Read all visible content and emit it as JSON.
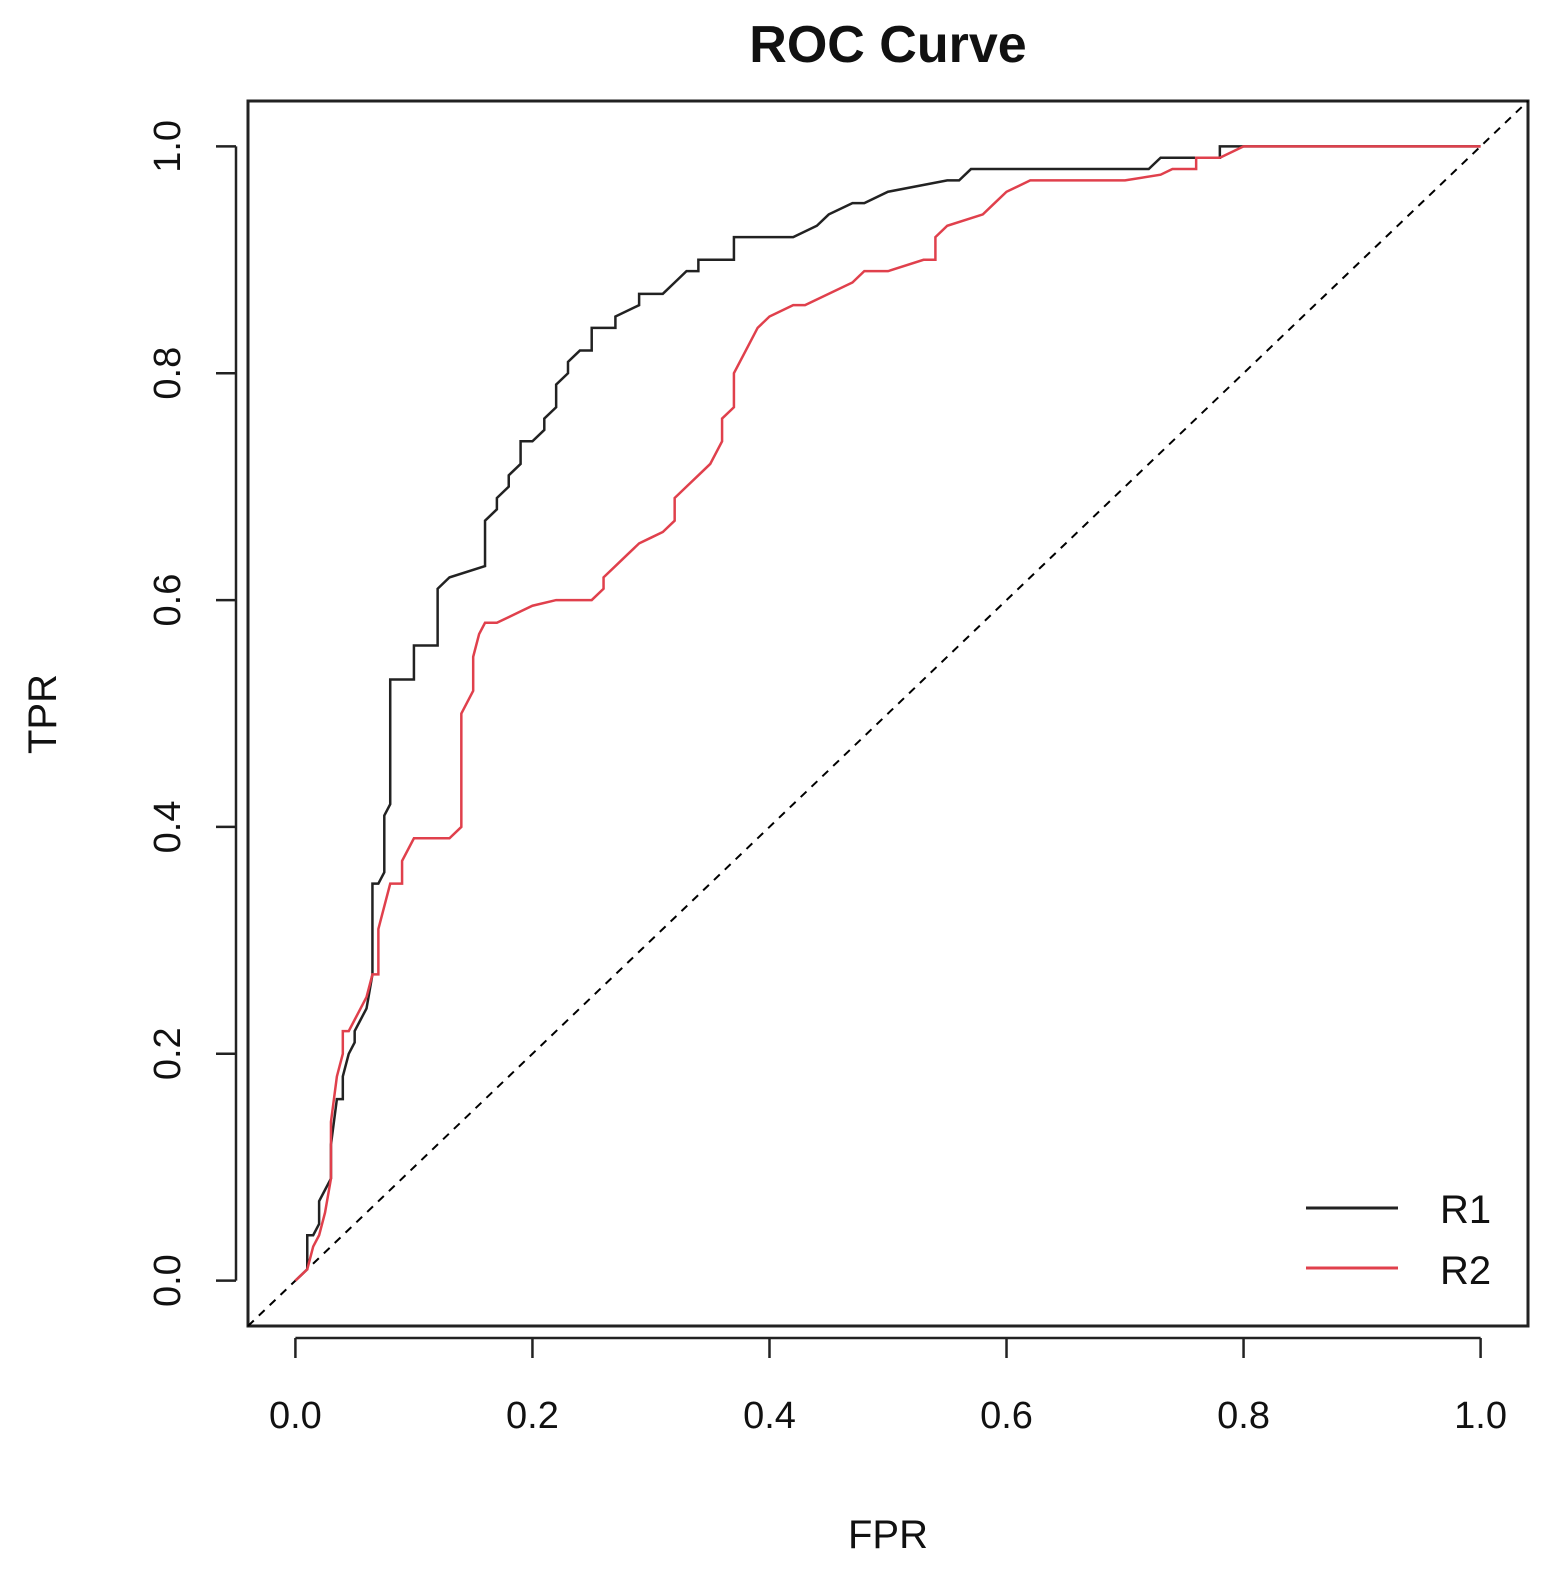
{
  "chart_data": {
    "type": "line",
    "title": "ROC Curve",
    "xlabel": "FPR",
    "ylabel": "TPR",
    "xlim": [
      -0.04,
      1.04
    ],
    "ylim": [
      -0.04,
      1.04
    ],
    "xticks": [
      0.0,
      0.2,
      0.4,
      0.6,
      0.8,
      1.0
    ],
    "xtick_labels": [
      "0.0",
      "0.2",
      "0.4",
      "0.6",
      "0.8",
      "1.0"
    ],
    "yticks": [
      0.0,
      0.2,
      0.4,
      0.6,
      0.8,
      1.0
    ],
    "ytick_labels": [
      "0.0",
      "0.2",
      "0.4",
      "0.6",
      "0.8",
      "1.0"
    ],
    "grid": false,
    "legend": {
      "position": "bottom-right"
    },
    "reference_line": {
      "name": "chance",
      "style": "dashed",
      "color": "#000000",
      "x": [
        -0.04,
        1.04
      ],
      "y": [
        -0.04,
        1.04
      ]
    },
    "series": [
      {
        "name": "R1",
        "color": "#222222",
        "x": [
          0.0,
          0.01,
          0.01,
          0.015,
          0.02,
          0.02,
          0.025,
          0.03,
          0.03,
          0.035,
          0.04,
          0.04,
          0.045,
          0.05,
          0.05,
          0.055,
          0.06,
          0.065,
          0.065,
          0.07,
          0.075,
          0.075,
          0.08,
          0.08,
          0.1,
          0.1,
          0.12,
          0.12,
          0.13,
          0.16,
          0.16,
          0.17,
          0.17,
          0.18,
          0.18,
          0.19,
          0.19,
          0.2,
          0.21,
          0.21,
          0.22,
          0.22,
          0.23,
          0.23,
          0.24,
          0.25,
          0.25,
          0.27,
          0.27,
          0.29,
          0.29,
          0.31,
          0.32,
          0.33,
          0.34,
          0.34,
          0.37,
          0.37,
          0.42,
          0.44,
          0.45,
          0.47,
          0.48,
          0.5,
          0.5,
          0.55,
          0.56,
          0.57,
          0.72,
          0.73,
          0.78,
          0.78,
          0.9,
          1.0
        ],
        "y": [
          0.0,
          0.01,
          0.04,
          0.04,
          0.05,
          0.07,
          0.08,
          0.09,
          0.12,
          0.16,
          0.16,
          0.18,
          0.2,
          0.21,
          0.22,
          0.23,
          0.24,
          0.27,
          0.35,
          0.35,
          0.36,
          0.41,
          0.42,
          0.53,
          0.53,
          0.56,
          0.56,
          0.61,
          0.62,
          0.63,
          0.67,
          0.68,
          0.69,
          0.7,
          0.71,
          0.72,
          0.74,
          0.74,
          0.75,
          0.76,
          0.77,
          0.79,
          0.8,
          0.81,
          0.82,
          0.82,
          0.84,
          0.84,
          0.85,
          0.86,
          0.87,
          0.87,
          0.88,
          0.89,
          0.89,
          0.9,
          0.9,
          0.92,
          0.92,
          0.93,
          0.94,
          0.95,
          0.95,
          0.96,
          0.96,
          0.97,
          0.97,
          0.98,
          0.98,
          0.99,
          0.99,
          1.0,
          1.0,
          1.0
        ]
      },
      {
        "name": "R2",
        "color": "#e0404c",
        "x": [
          0.0,
          0.01,
          0.015,
          0.02,
          0.025,
          0.03,
          0.03,
          0.035,
          0.04,
          0.04,
          0.045,
          0.05,
          0.055,
          0.06,
          0.065,
          0.07,
          0.07,
          0.075,
          0.08,
          0.09,
          0.09,
          0.1,
          0.1,
          0.13,
          0.14,
          0.14,
          0.145,
          0.15,
          0.15,
          0.155,
          0.16,
          0.17,
          0.18,
          0.19,
          0.2,
          0.22,
          0.25,
          0.26,
          0.26,
          0.27,
          0.28,
          0.29,
          0.3,
          0.31,
          0.32,
          0.32,
          0.33,
          0.34,
          0.35,
          0.36,
          0.36,
          0.37,
          0.37,
          0.38,
          0.39,
          0.4,
          0.42,
          0.43,
          0.47,
          0.48,
          0.5,
          0.53,
          0.54,
          0.54,
          0.55,
          0.58,
          0.59,
          0.6,
          0.61,
          0.62,
          0.68,
          0.7,
          0.73,
          0.74,
          0.76,
          0.76,
          0.77,
          0.78,
          0.8,
          0.85,
          0.9,
          1.0
        ],
        "y": [
          0.0,
          0.01,
          0.03,
          0.04,
          0.06,
          0.09,
          0.14,
          0.18,
          0.2,
          0.22,
          0.22,
          0.23,
          0.24,
          0.25,
          0.27,
          0.27,
          0.31,
          0.33,
          0.35,
          0.35,
          0.37,
          0.39,
          0.39,
          0.39,
          0.4,
          0.5,
          0.51,
          0.52,
          0.55,
          0.57,
          0.58,
          0.58,
          0.585,
          0.59,
          0.595,
          0.6,
          0.6,
          0.61,
          0.62,
          0.63,
          0.64,
          0.65,
          0.655,
          0.66,
          0.67,
          0.69,
          0.7,
          0.71,
          0.72,
          0.74,
          0.76,
          0.77,
          0.8,
          0.82,
          0.84,
          0.85,
          0.86,
          0.86,
          0.88,
          0.89,
          0.89,
          0.9,
          0.9,
          0.92,
          0.93,
          0.94,
          0.95,
          0.96,
          0.965,
          0.97,
          0.97,
          0.97,
          0.975,
          0.98,
          0.98,
          0.99,
          0.99,
          0.99,
          1.0,
          1.0,
          1.0,
          1.0
        ]
      }
    ]
  }
}
